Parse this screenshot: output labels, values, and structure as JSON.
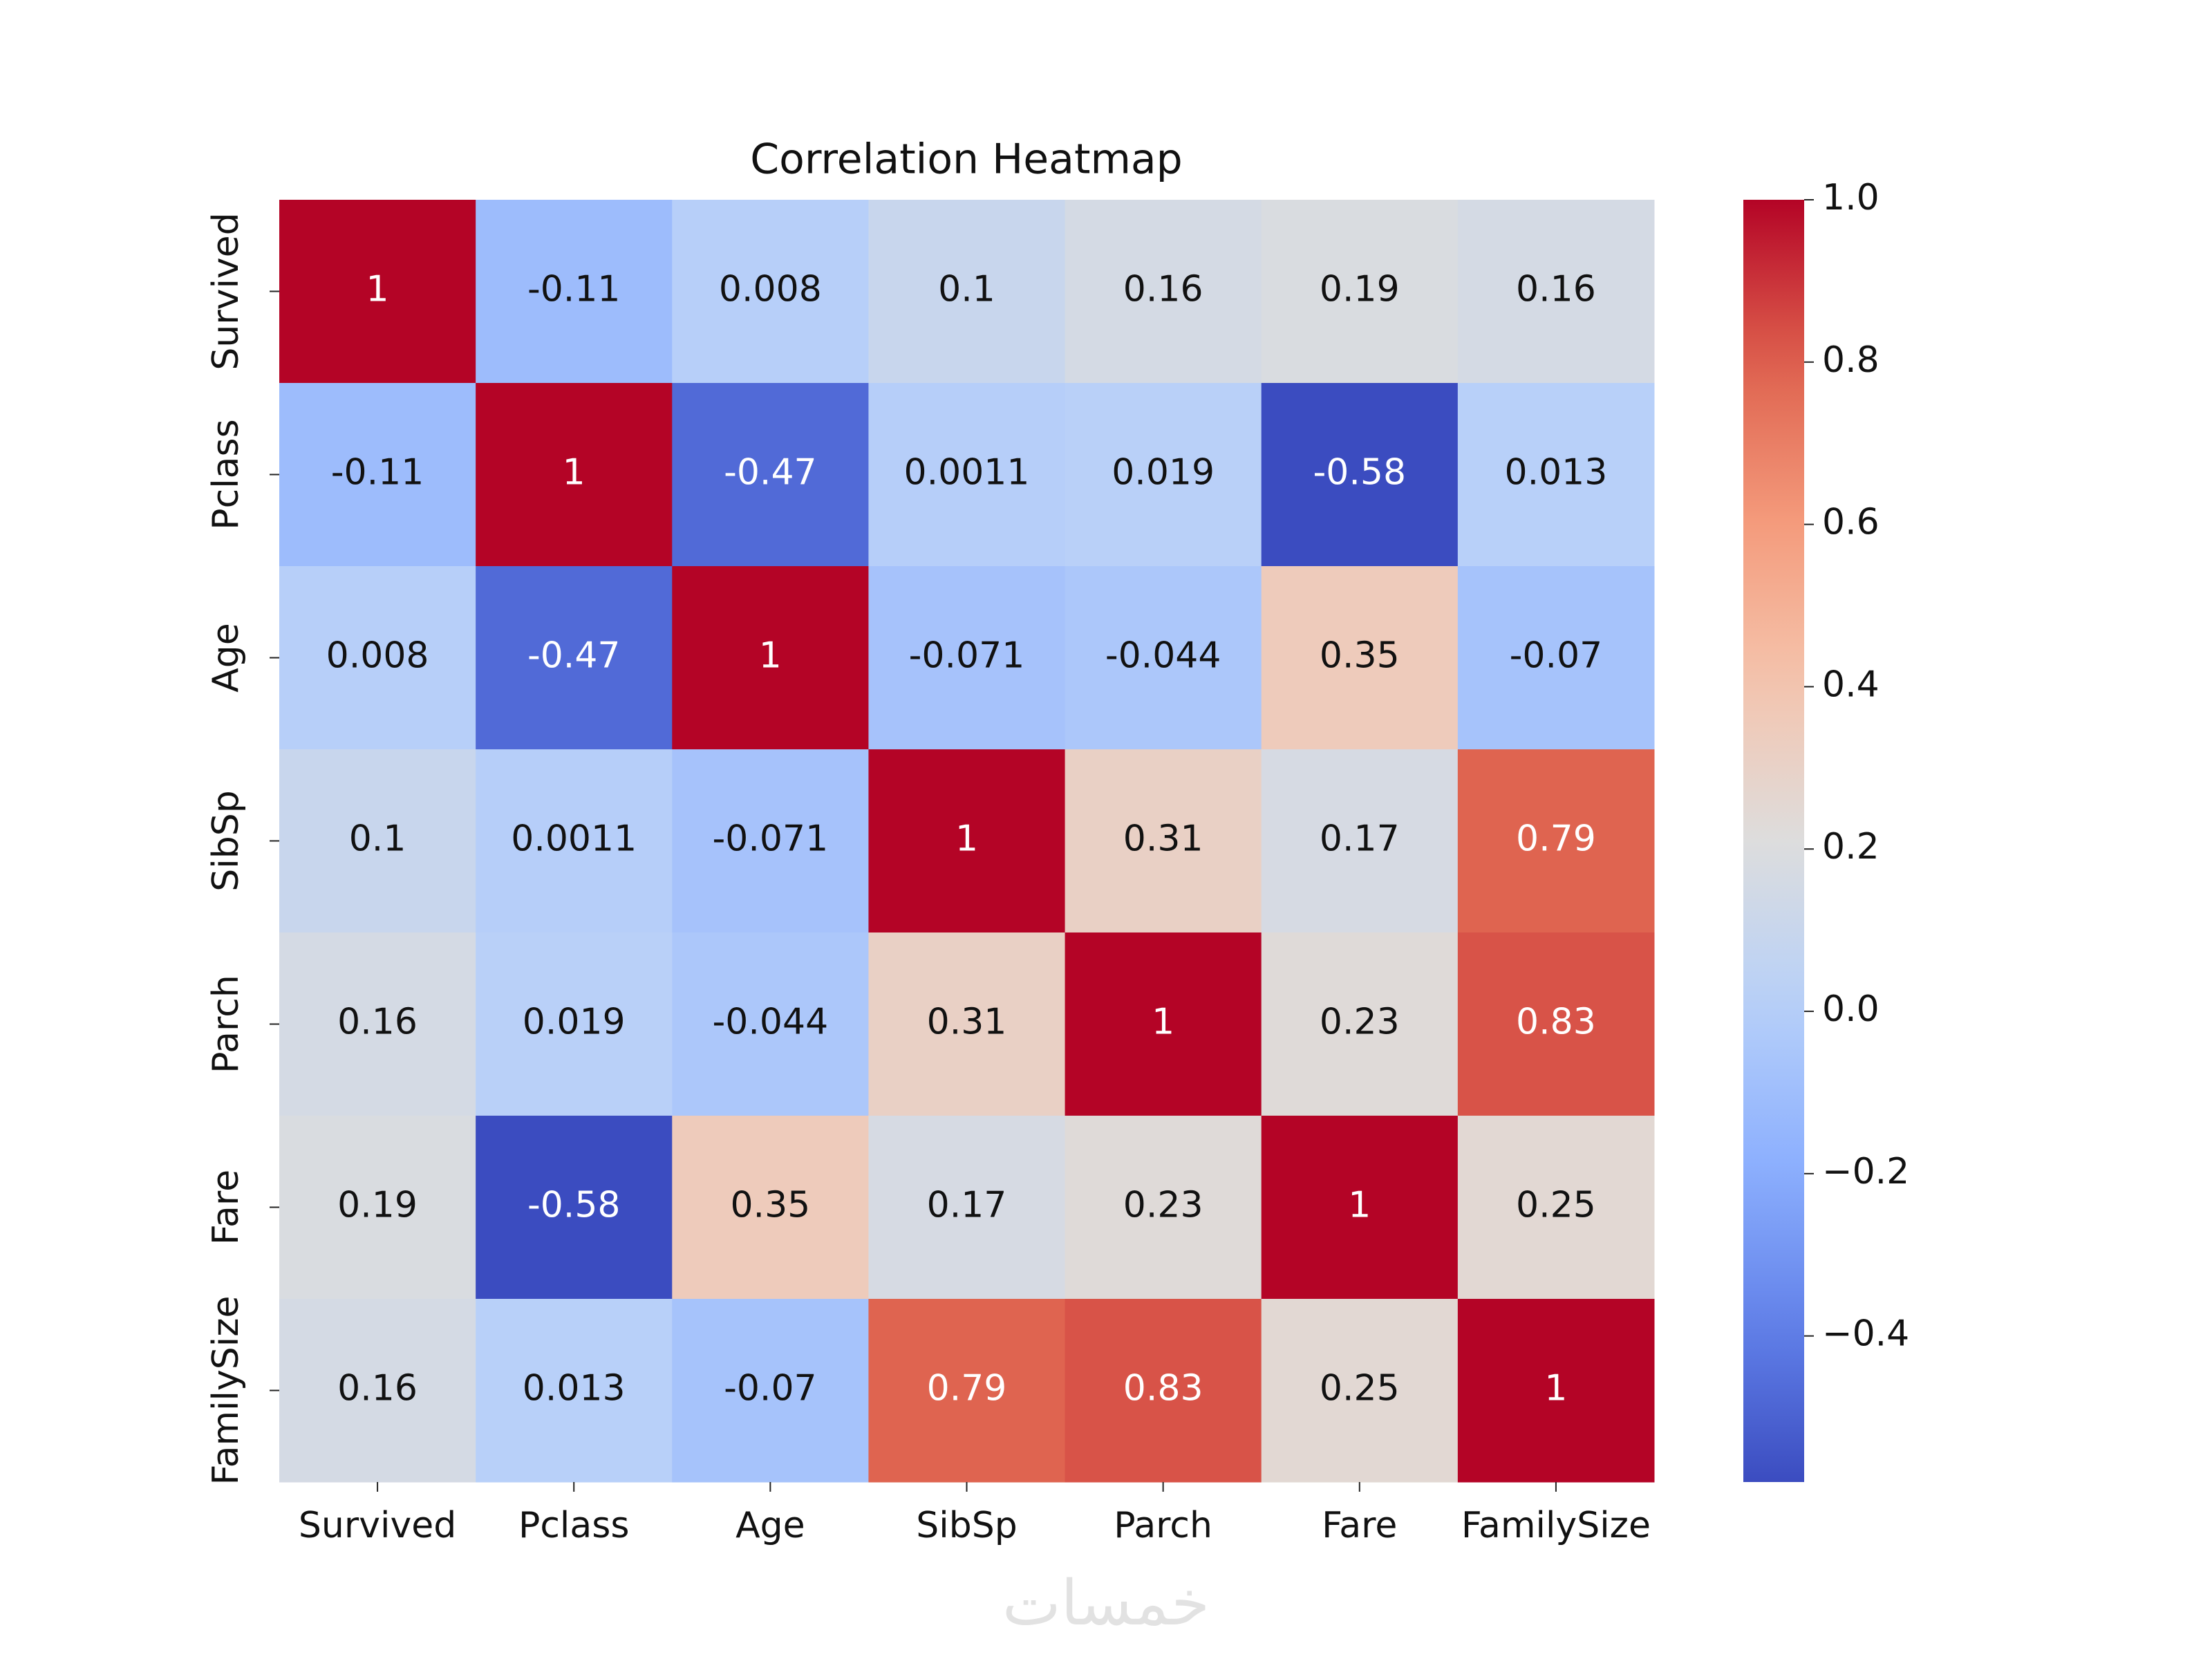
{
  "chart_data": {
    "type": "heatmap",
    "title": "Correlation Heatmap",
    "x": [
      "Survived",
      "Pclass",
      "Age",
      "SibSp",
      "Parch",
      "Fare",
      "FamilySize"
    ],
    "y": [
      "Survived",
      "Pclass",
      "Age",
      "SibSp",
      "Parch",
      "Fare",
      "FamilySize"
    ],
    "values": [
      [
        1,
        -0.11,
        0.008,
        0.1,
        0.16,
        0.19,
        0.16
      ],
      [
        -0.11,
        1,
        -0.47,
        0.0011,
        0.019,
        -0.58,
        0.013
      ],
      [
        0.008,
        -0.47,
        1,
        -0.071,
        -0.044,
        0.35,
        -0.07
      ],
      [
        0.1,
        0.0011,
        -0.071,
        1,
        0.31,
        0.17,
        0.79
      ],
      [
        0.16,
        0.019,
        -0.044,
        0.31,
        1,
        0.23,
        0.83
      ],
      [
        0.19,
        -0.58,
        0.35,
        0.17,
        0.23,
        1,
        0.25
      ],
      [
        0.16,
        0.013,
        -0.07,
        0.79,
        0.83,
        0.25,
        1
      ]
    ],
    "colormap": "coolwarm",
    "clim": [
      -0.58,
      1
    ],
    "cticks": [
      {
        "value": 1,
        "label": "1.0"
      },
      {
        "value": 0.8,
        "label": "0.8"
      },
      {
        "value": 0.6,
        "label": "0.6"
      },
      {
        "value": 0.4,
        "label": "0.4"
      },
      {
        "value": 0.2,
        "label": "0.2"
      },
      {
        "value": 0,
        "label": "0.0"
      },
      {
        "value": -0.2,
        "label": "−0.2"
      },
      {
        "value": -0.4,
        "label": "−0.4"
      }
    ],
    "watermark": "خمسات"
  }
}
